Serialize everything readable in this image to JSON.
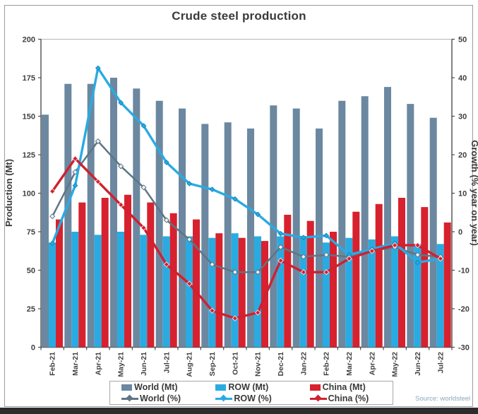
{
  "chart": {
    "title": "Crude steel production",
    "left_axis": {
      "label": "Production (Mt)",
      "min": 0,
      "max": 200,
      "step": 25
    },
    "right_axis": {
      "label": "Growth (% year on year)",
      "min": -30,
      "max": 50,
      "step": 10
    },
    "source": "Source: worldsteel"
  },
  "chart_data": {
    "type": "bar+line",
    "title": "Crude steel production",
    "ylabel_left": "Production (Mt)",
    "ylabel_right": "Growth (% year on year)",
    "ylim_left": [
      0,
      200
    ],
    "ylim_right": [
      -30,
      50
    ],
    "grid": false,
    "legend_position": "bottom",
    "categories": [
      "Feb-21",
      "Mar-21",
      "Apr-21",
      "May-21",
      "Jun-21",
      "Jul-21",
      "Aug-21",
      "Sep-21",
      "Oct-21",
      "Nov-21",
      "Dec-21",
      "Jan-22",
      "Feb-22",
      "Mar-22",
      "Apr-22",
      "May-22",
      "Jun-22",
      "Jul-22"
    ],
    "bar_series": [
      {
        "name": "World (Mt)",
        "color": "#6b88a0",
        "values": [
          151,
          171,
          171,
          175,
          168,
          160,
          155,
          145,
          146,
          142,
          157,
          155,
          142,
          160,
          163,
          169,
          158,
          149
        ]
      },
      {
        "name": "ROW (Mt)",
        "color": "#29abe2",
        "values": [
          68,
          75,
          73,
          75,
          73,
          72,
          72,
          71,
          74,
          72,
          72,
          72,
          68,
          71,
          70,
          72,
          67,
          67
        ]
      },
      {
        "name": "China (Mt)",
        "color": "#d7212e",
        "values": [
          83,
          94,
          97,
          99,
          94,
          87,
          83,
          74,
          71,
          69,
          86,
          82,
          75,
          88,
          93,
          97,
          91,
          81
        ]
      }
    ],
    "line_series": [
      {
        "name": "World (%)",
        "color": "#5f7585",
        "marker_fill": "#eef2f5",
        "marker_stroke": "#5f7585",
        "values": [
          4,
          15.5,
          23.5,
          17,
          11.5,
          3,
          -2,
          -8.5,
          -10.5,
          -10.5,
          -4,
          -6.5,
          -6,
          -6.5,
          -5,
          -4,
          -6,
          -6.5
        ]
      },
      {
        "name": "ROW (%)",
        "color": "#29abe2",
        "marker_fill": "#29abe2",
        "marker_stroke": "#1488bf",
        "values": [
          -3,
          12,
          42.5,
          33.5,
          27.5,
          18,
          12.5,
          11,
          8.5,
          4.5,
          -0.5,
          -1.5,
          -1,
          -6,
          -4.5,
          -3,
          -8,
          -7
        ]
      },
      {
        "name": "China (%)",
        "color": "#d02030",
        "marker_fill": "#d02030",
        "marker_stroke": "#f2d7d7",
        "values": [
          10.5,
          19,
          13,
          7,
          1,
          -8.5,
          -13.5,
          -20.5,
          -22.5,
          -21,
          -7.5,
          -10.5,
          -10.5,
          -7,
          -5,
          -3.5,
          -3.5,
          -7
        ]
      }
    ]
  }
}
